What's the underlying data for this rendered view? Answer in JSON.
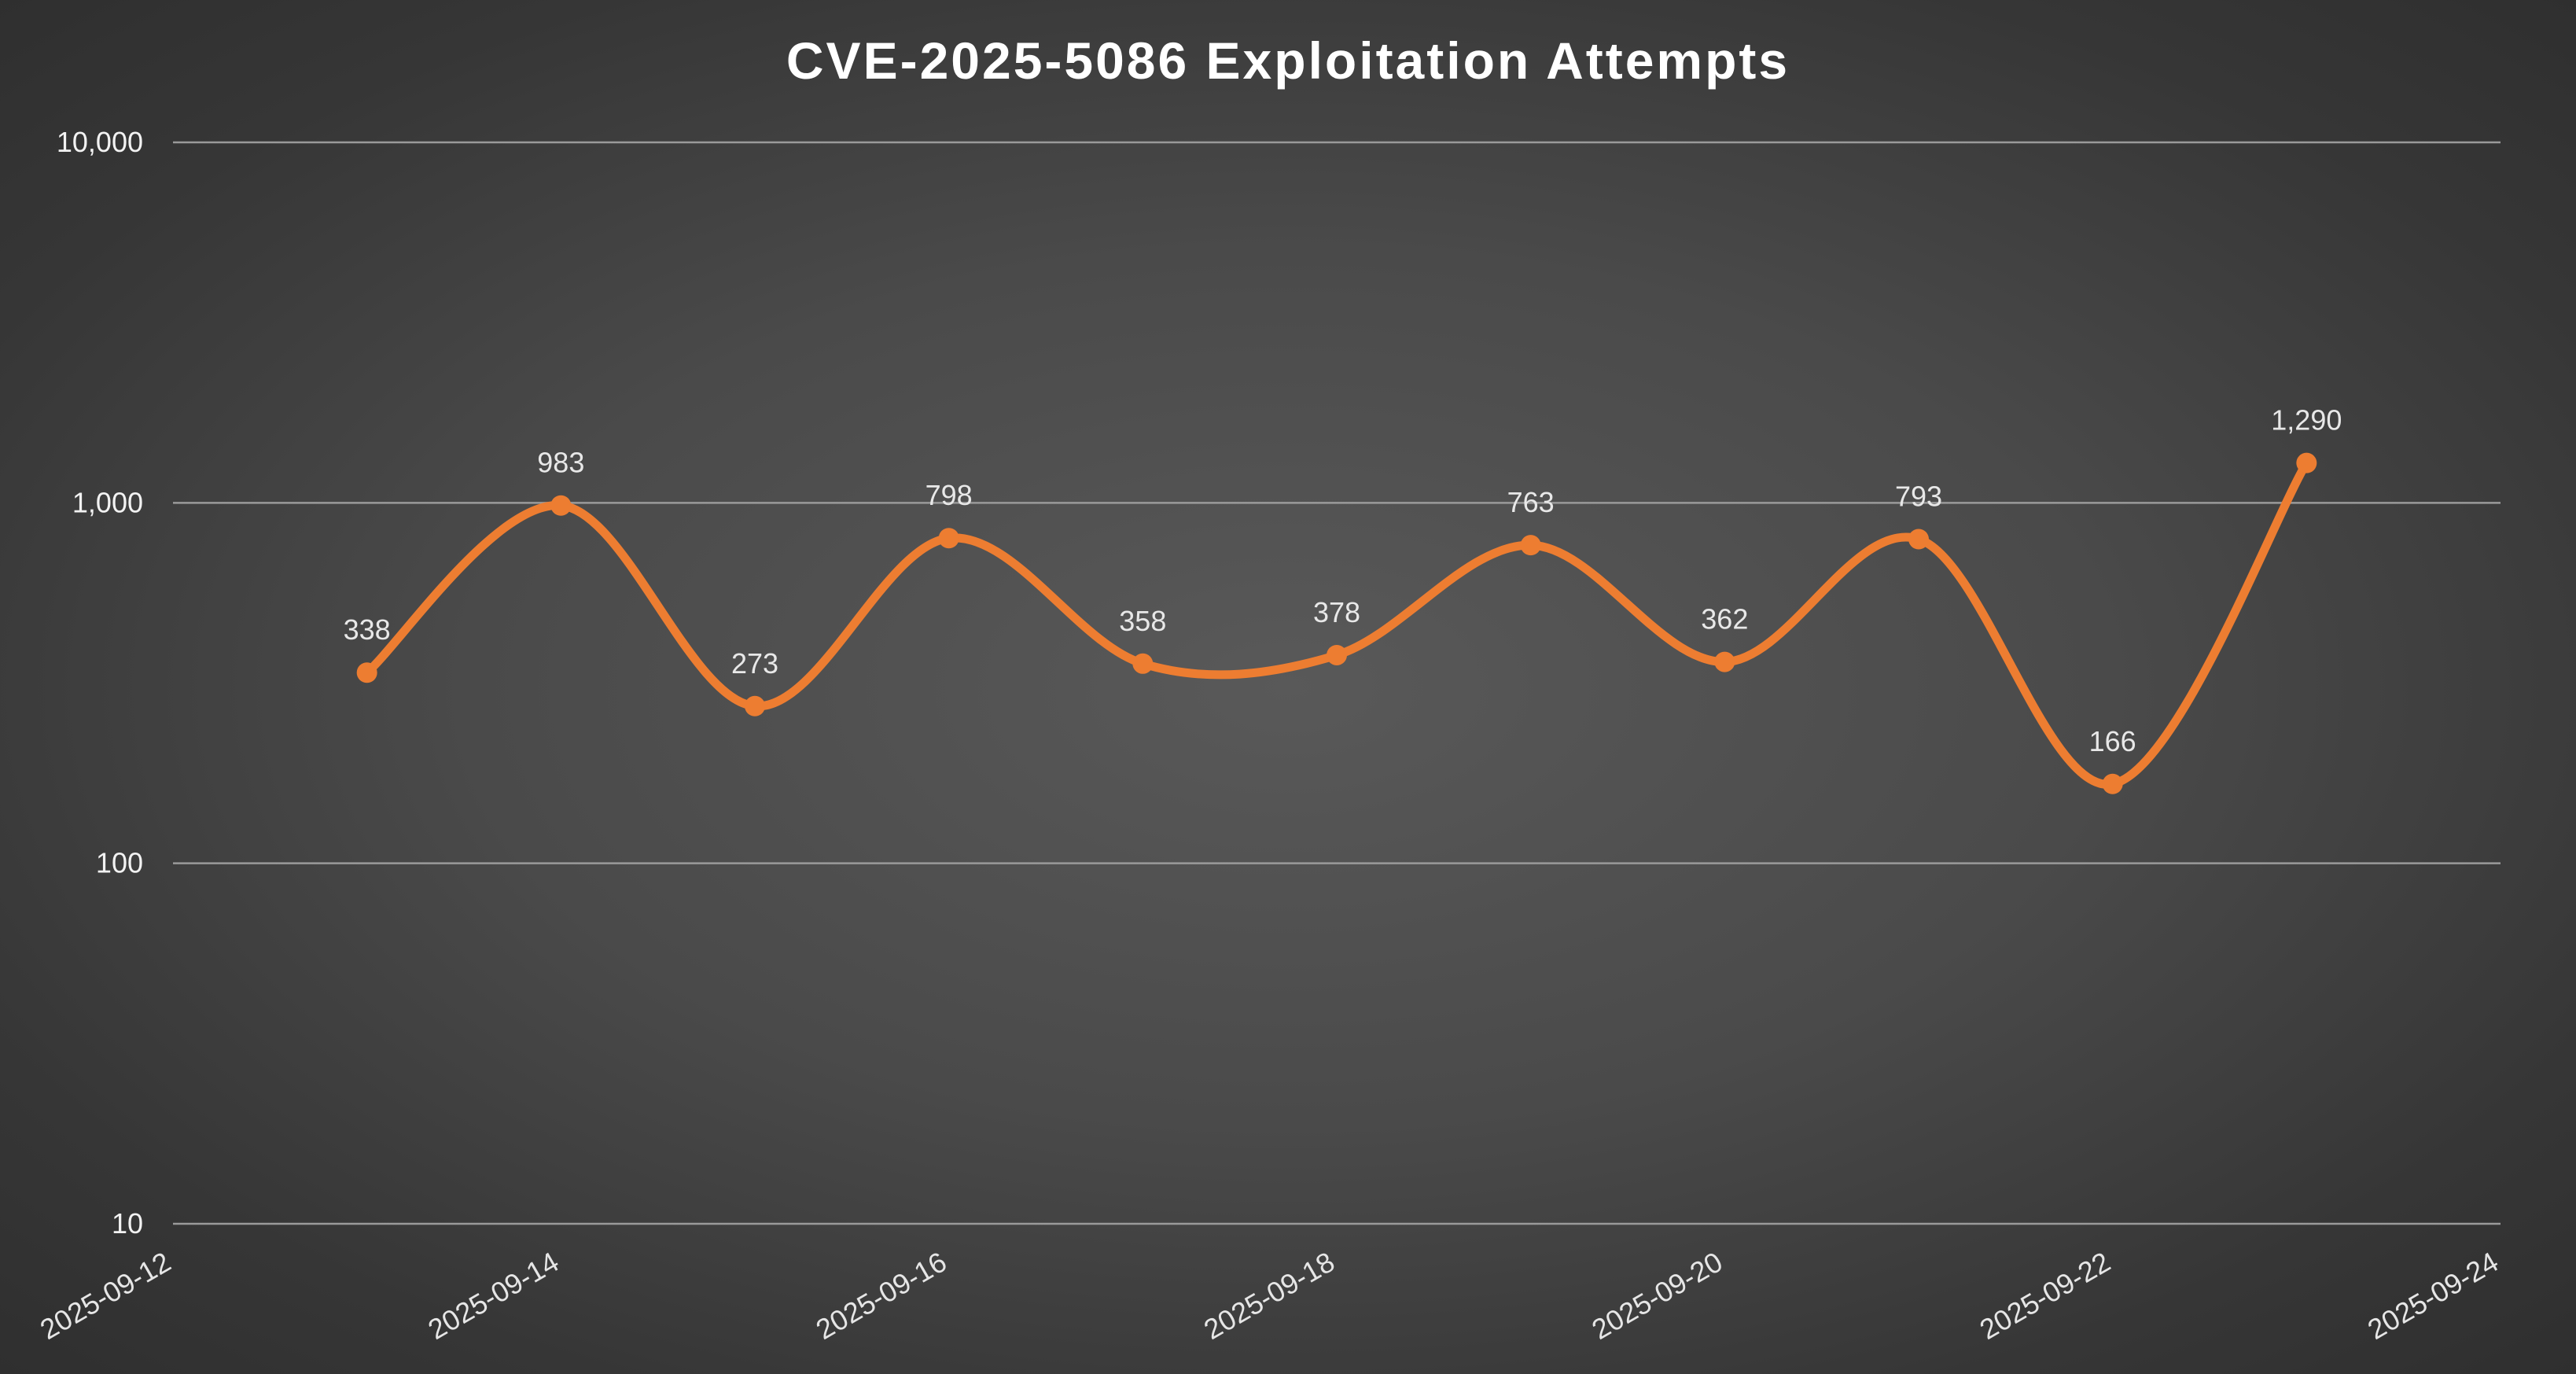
{
  "chart_data": {
    "type": "line",
    "title": "CVE-2025-5086 Exploitation Attempts",
    "xlabel": "",
    "ylabel": "",
    "y_scale": "log",
    "ylim": [
      10,
      10000
    ],
    "y_ticks": [
      "10",
      "100",
      "1,000",
      "10,000"
    ],
    "x_range": [
      "2025-09-12",
      "2025-09-24"
    ],
    "x_ticks": [
      "2025-09-12",
      "2025-09-14",
      "2025-09-16",
      "2025-09-18",
      "2025-09-20",
      "2025-09-22",
      "2025-09-24"
    ],
    "grid": true,
    "legend": "none",
    "smooth": true,
    "line_color": "#ED7D31",
    "series": [
      {
        "x": [
          "2025-09-13",
          "2025-09-14",
          "2025-09-15",
          "2025-09-16",
          "2025-09-17",
          "2025-09-18",
          "2025-09-19",
          "2025-09-20",
          "2025-09-21",
          "2025-09-22",
          "2025-09-23"
        ],
        "values": [
          338,
          983,
          273,
          798,
          358,
          378,
          763,
          362,
          793,
          166,
          1290
        ],
        "labels": [
          "338",
          "983",
          "273",
          "798",
          "358",
          "378",
          "763",
          "362",
          "793",
          "166",
          "1,290"
        ]
      }
    ]
  }
}
